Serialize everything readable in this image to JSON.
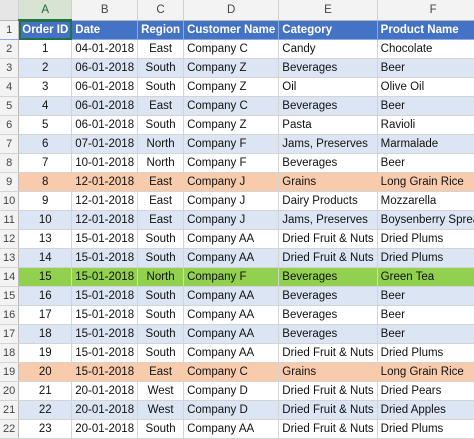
{
  "columns": [
    "A",
    "B",
    "C",
    "D",
    "E",
    "F"
  ],
  "header_row": {
    "row": "1",
    "cells": [
      "Order ID",
      "Date",
      "Region",
      "Customer Name",
      "Category",
      "Product Name"
    ]
  },
  "rows": [
    {
      "row": "2",
      "cells": [
        "1",
        "04-01-2018",
        "East",
        "Company C",
        "Candy",
        "Chocolate"
      ],
      "highlight": ""
    },
    {
      "row": "3",
      "cells": [
        "2",
        "06-01-2018",
        "South",
        "Company Z",
        "Beverages",
        "Beer"
      ],
      "highlight": ""
    },
    {
      "row": "4",
      "cells": [
        "3",
        "06-01-2018",
        "South",
        "Company Z",
        "Oil",
        "Olive Oil"
      ],
      "highlight": ""
    },
    {
      "row": "5",
      "cells": [
        "4",
        "06-01-2018",
        "East",
        "Company C",
        "Beverages",
        "Beer"
      ],
      "highlight": ""
    },
    {
      "row": "6",
      "cells": [
        "5",
        "06-01-2018",
        "South",
        "Company Z",
        "Pasta",
        "Ravioli"
      ],
      "highlight": ""
    },
    {
      "row": "7",
      "cells": [
        "6",
        "07-01-2018",
        "North",
        "Company F",
        "Jams, Preserves",
        "Marmalade"
      ],
      "highlight": ""
    },
    {
      "row": "8",
      "cells": [
        "7",
        "10-01-2018",
        "North",
        "Company F",
        "Beverages",
        "Beer"
      ],
      "highlight": ""
    },
    {
      "row": "9",
      "cells": [
        "8",
        "12-01-2018",
        "East",
        "Company J",
        "Grains",
        "Long Grain Rice"
      ],
      "highlight": "orange"
    },
    {
      "row": "10",
      "cells": [
        "9",
        "12-01-2018",
        "East",
        "Company J",
        "Dairy Products",
        "Mozzarella"
      ],
      "highlight": ""
    },
    {
      "row": "11",
      "cells": [
        "10",
        "12-01-2018",
        "East",
        "Company J",
        "Jams, Preserves",
        "Boysenberry Spread"
      ],
      "highlight": ""
    },
    {
      "row": "12",
      "cells": [
        "13",
        "15-01-2018",
        "South",
        "Company AA",
        "Dried Fruit & Nuts",
        "Dried Plums"
      ],
      "highlight": ""
    },
    {
      "row": "13",
      "cells": [
        "14",
        "15-01-2018",
        "South",
        "Company AA",
        "Dried Fruit & Nuts",
        "Dried Plums"
      ],
      "highlight": ""
    },
    {
      "row": "14",
      "cells": [
        "15",
        "15-01-2018",
        "North",
        "Company F",
        "Beverages",
        "Green Tea"
      ],
      "highlight": "green"
    },
    {
      "row": "15",
      "cells": [
        "16",
        "15-01-2018",
        "South",
        "Company AA",
        "Beverages",
        "Beer"
      ],
      "highlight": ""
    },
    {
      "row": "16",
      "cells": [
        "17",
        "15-01-2018",
        "South",
        "Company AA",
        "Beverages",
        "Beer"
      ],
      "highlight": ""
    },
    {
      "row": "17",
      "cells": [
        "18",
        "15-01-2018",
        "South",
        "Company AA",
        "Beverages",
        "Beer"
      ],
      "highlight": ""
    },
    {
      "row": "18",
      "cells": [
        "19",
        "15-01-2018",
        "South",
        "Company AA",
        "Dried Fruit & Nuts",
        "Dried Plums"
      ],
      "highlight": ""
    },
    {
      "row": "19",
      "cells": [
        "20",
        "15-01-2018",
        "East",
        "Company C",
        "Grains",
        "Long Grain Rice"
      ],
      "highlight": "orange"
    },
    {
      "row": "20",
      "cells": [
        "21",
        "20-01-2018",
        "West",
        "Company D",
        "Dried Fruit & Nuts",
        "Dried Pears"
      ],
      "highlight": ""
    },
    {
      "row": "21",
      "cells": [
        "22",
        "20-01-2018",
        "West",
        "Company D",
        "Dried Fruit & Nuts",
        "Dried Apples"
      ],
      "highlight": ""
    },
    {
      "row": "22",
      "cells": [
        "23",
        "20-01-2018",
        "South",
        "Company AA",
        "Dried Fruit & Nuts",
        "Dried Plums"
      ],
      "highlight": ""
    }
  ],
  "colors": {
    "header_fill": "#4472c4",
    "band_fill": "#dbe5f3",
    "orange_highlight": "#f8cbad",
    "green_highlight": "#92d050",
    "selection_accent": "#217346"
  }
}
